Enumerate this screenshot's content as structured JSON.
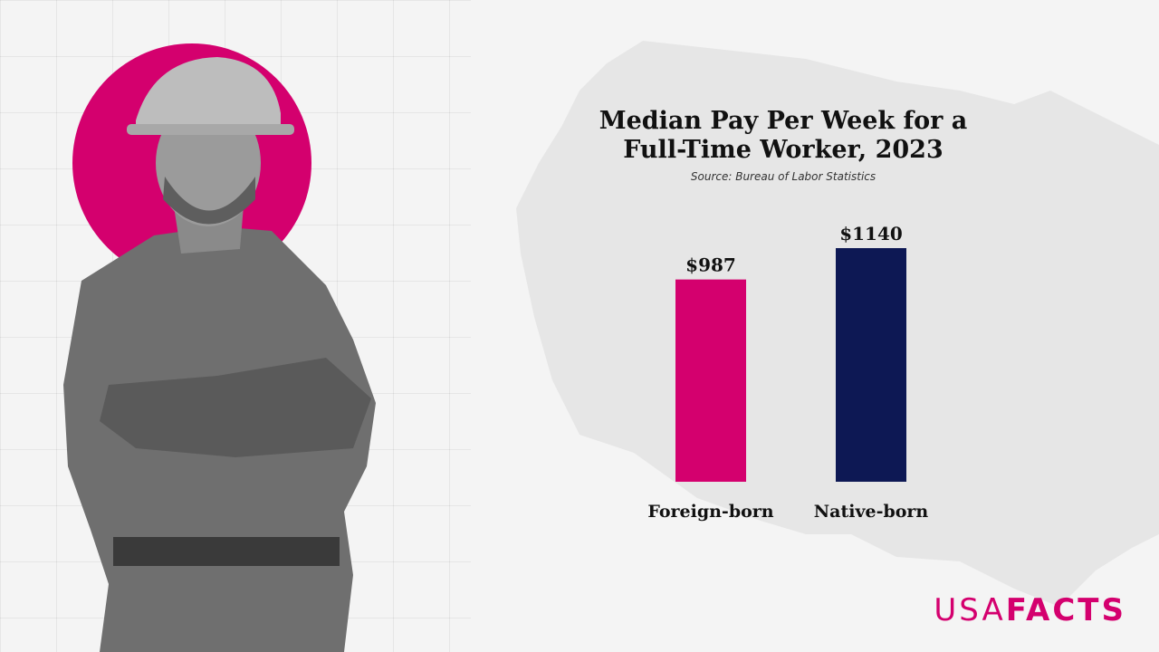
{
  "chart_data": {
    "type": "bar",
    "title_line1": "Median Pay Per Week for a",
    "title_line2": "Full-Time Worker, 2023",
    "source": "Source: Bureau of Labor Statistics",
    "categories": [
      "Foreign-born",
      "Native-born"
    ],
    "values": [
      987,
      1140
    ],
    "value_labels": [
      "$987",
      "$1140"
    ],
    "colors": [
      "#d4006e",
      "#0d1854"
    ],
    "ylim": [
      0,
      1140
    ],
    "xlabel": "",
    "ylabel": "",
    "grid": false
  },
  "brand": {
    "logo_part1": "USA",
    "logo_part2": "FACTS",
    "accent_color": "#d4006e"
  },
  "images": {
    "worker_photo": "worker-with-hard-hat-icon",
    "map": "us-map-silhouette"
  }
}
